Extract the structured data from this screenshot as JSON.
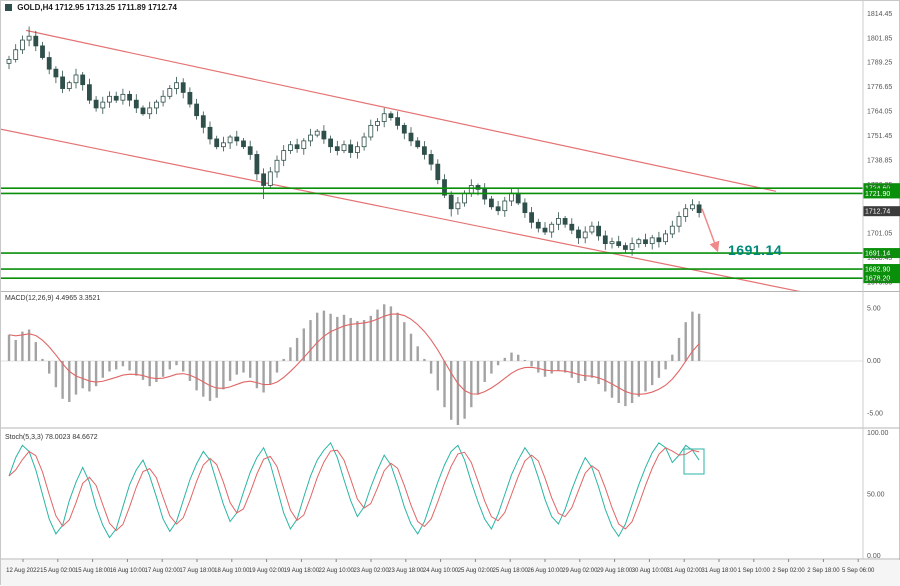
{
  "header": {
    "symbol": "GOLD,H4",
    "ohlc": "1712.95 1713.25 1711.89 1712.74"
  },
  "indicators": {
    "macd_label": "MACD(12,26,9) 4.4965 3.3521",
    "stoch_label": "Stoch(5,3,3) 78.0023 84.6672"
  },
  "colors": {
    "up_candle": "#ffffff",
    "down_candle": "#2f4f4a",
    "candle_border": "#2f4f4a",
    "channel": "#e57373",
    "forecast": "#ef8a8a",
    "level": "#0a8f0a",
    "hist": "#a3a3a3",
    "signal": "#e06666",
    "stoch_main": "#2ab5a5",
    "stoch_signal": "#e06666",
    "annotation": "#00897b",
    "axis_text": "#555555",
    "current_tag": "#3c3c3c",
    "time_text": "#333333",
    "time_bg": "#f5f5f5"
  },
  "chart_data": [
    {
      "type": "candlestick",
      "title": "GOLD H4 price",
      "timeframe": "H4",
      "x_range": [
        "12 Aug 2022",
        "5 Sep 2022"
      ],
      "ylim": [
        1672.6,
        1816
      ],
      "y_axis_labels": [
        "1814.45",
        "1801.85",
        "1789.25",
        "1776.65",
        "1764.05",
        "1751.45",
        "1738.85",
        "1726.25",
        "1713.65",
        "1701.05",
        "1688.45",
        "1675.85"
      ],
      "first_open": 1789,
      "closes": [
        1791,
        1796,
        1801,
        1803,
        1798,
        1792,
        1786,
        1782,
        1776,
        1779,
        1783,
        1778,
        1770,
        1766,
        1769,
        1772,
        1770,
        1773,
        1770,
        1766,
        1763,
        1766,
        1769,
        1772,
        1776,
        1779,
        1774,
        1768,
        1762,
        1756,
        1750,
        1746,
        1748,
        1751,
        1749,
        1746,
        1742,
        1732,
        1726,
        1733,
        1739,
        1744,
        1747,
        1745,
        1749,
        1752,
        1754,
        1750,
        1746,
        1744,
        1747,
        1743,
        1746,
        1751,
        1757,
        1759,
        1763,
        1761,
        1757,
        1753,
        1749,
        1746,
        1742,
        1737,
        1729,
        1721,
        1714,
        1717,
        1722,
        1726,
        1724,
        1719,
        1715,
        1713,
        1718,
        1722,
        1717,
        1712,
        1707,
        1704,
        1702,
        1706,
        1709,
        1706,
        1703,
        1699,
        1702,
        1705,
        1700,
        1696,
        1697,
        1695,
        1693,
        1696,
        1698,
        1696,
        1699,
        1697,
        1701,
        1705,
        1710,
        1714,
        1716,
        1712
      ],
      "high_overrides": {
        "3": 1808,
        "25": 1782,
        "56": 1766
      },
      "low_overrides": {
        "38": 1719,
        "66": 1710,
        "92": 1691
      },
      "levels": [
        {
          "price": 1724.6
        },
        {
          "price": 1721.9
        },
        {
          "price": 1691.14
        },
        {
          "price": 1682.9
        },
        {
          "price": 1678.2
        }
      ],
      "channel_lines": [
        {
          "x1": 25,
          "p1": 1806,
          "x2": 775,
          "p2": 1723
        },
        {
          "x1": 0,
          "p1": 1755,
          "x2": 900,
          "p2": 1660.7
        }
      ],
      "forecast_arrow": {
        "x1": 701,
        "p1": 1714,
        "x2": 716,
        "p2": 1693
      },
      "current_price": "1712.74",
      "annotation_label": "1691.14"
    },
    {
      "type": "bar",
      "name": "MACD(12,26,9)",
      "ylim": [
        -6.5,
        6.5
      ],
      "y_axis_labels": [
        "5.00",
        "0.00",
        "-5.00"
      ],
      "values": [
        2.5,
        2.0,
        2.8,
        3.0,
        1.8,
        0.2,
        -1.2,
        -2.5,
        -3.6,
        -3.9,
        -3.2,
        -2.6,
        -2.9,
        -2.4,
        -1.6,
        -1.0,
        -0.8,
        -0.5,
        -0.9,
        -1.4,
        -1.8,
        -2.4,
        -2.0,
        -1.5,
        -0.8,
        -0.4,
        -1.0,
        -1.9,
        -2.8,
        -3.4,
        -3.8,
        -3.5,
        -2.7,
        -1.9,
        -1.3,
        -1.1,
        -1.6,
        -2.6,
        -3.0,
        -2.2,
        -1.1,
        0.2,
        1.3,
        2.2,
        3.1,
        3.9,
        4.6,
        4.8,
        4.5,
        4.2,
        4.4,
        4.1,
        3.8,
        3.9,
        4.3,
        4.9,
        5.4,
        5.2,
        4.6,
        3.7,
        2.6,
        1.4,
        0.2,
        -1.2,
        -2.8,
        -4.4,
        -5.6,
        -6.1,
        -5.5,
        -4.4,
        -3.2,
        -2.0,
        -1.2,
        -0.4,
        0.3,
        0.8,
        0.6,
        0.1,
        -0.5,
        -1.1,
        -1.5,
        -1.2,
        -0.9,
        -1.1,
        -1.6,
        -2.1,
        -1.9,
        -1.6,
        -2.2,
        -2.9,
        -3.5,
        -4.0,
        -4.3,
        -4.0,
        -3.4,
        -2.9,
        -2.3,
        -1.6,
        -0.8,
        0.6,
        2.2,
        3.7,
        4.7,
        4.5
      ]
    },
    {
      "type": "line",
      "name": "Stoch(5,3,3)",
      "ylim": [
        0,
        100
      ],
      "y_axis_labels": [
        "100.00",
        "50.00",
        "0.00"
      ],
      "values": [
        65,
        80,
        90,
        85,
        70,
        50,
        30,
        18,
        25,
        45,
        60,
        72,
        60,
        40,
        25,
        15,
        22,
        40,
        58,
        70,
        78,
        65,
        48,
        30,
        20,
        28,
        45,
        62,
        75,
        85,
        78,
        60,
        42,
        28,
        35,
        52,
        68,
        80,
        88,
        75,
        55,
        35,
        22,
        30,
        48,
        65,
        78,
        86,
        92,
        80,
        62,
        45,
        32,
        40,
        56,
        70,
        82,
        74,
        58,
        40,
        26,
        18,
        28,
        44,
        60,
        74,
        85,
        90,
        78,
        60,
        44,
        30,
        22,
        34,
        50,
        66,
        78,
        88,
        80,
        64,
        46,
        32,
        26,
        38,
        54,
        68,
        80,
        72,
        56,
        38,
        24,
        16,
        26,
        42,
        58,
        72,
        84,
        92,
        88,
        76,
        82,
        90,
        86,
        78
      ],
      "box_annotation": {
        "x": 683,
        "y": 448,
        "w": 20,
        "h": 25
      }
    }
  ],
  "time_axis": {
    "labels": [
      "12 Aug 2022",
      "15 Aug 02:00",
      "15 Aug 18:00",
      "16 Aug 10:00",
      "17 Aug 02:00",
      "17 Aug 18:00",
      "18 Aug 10:00",
      "19 Aug 02:00",
      "19 Aug 18:00",
      "22 Aug 10:00",
      "23 Aug 02:00",
      "23 Aug 18:00",
      "24 Aug 10:00",
      "25 Aug 02:00",
      "25 Aug 18:00",
      "26 Aug 10:00",
      "29 Aug 02:00",
      "29 Aug 18:00",
      "30 Aug 10:00",
      "31 Aug 02:00",
      "31 Aug 18:00",
      "1 Sep 10:00",
      "2 Sep 02:00",
      "2 Sep 18:00",
      "5 Sep 06:00"
    ]
  }
}
